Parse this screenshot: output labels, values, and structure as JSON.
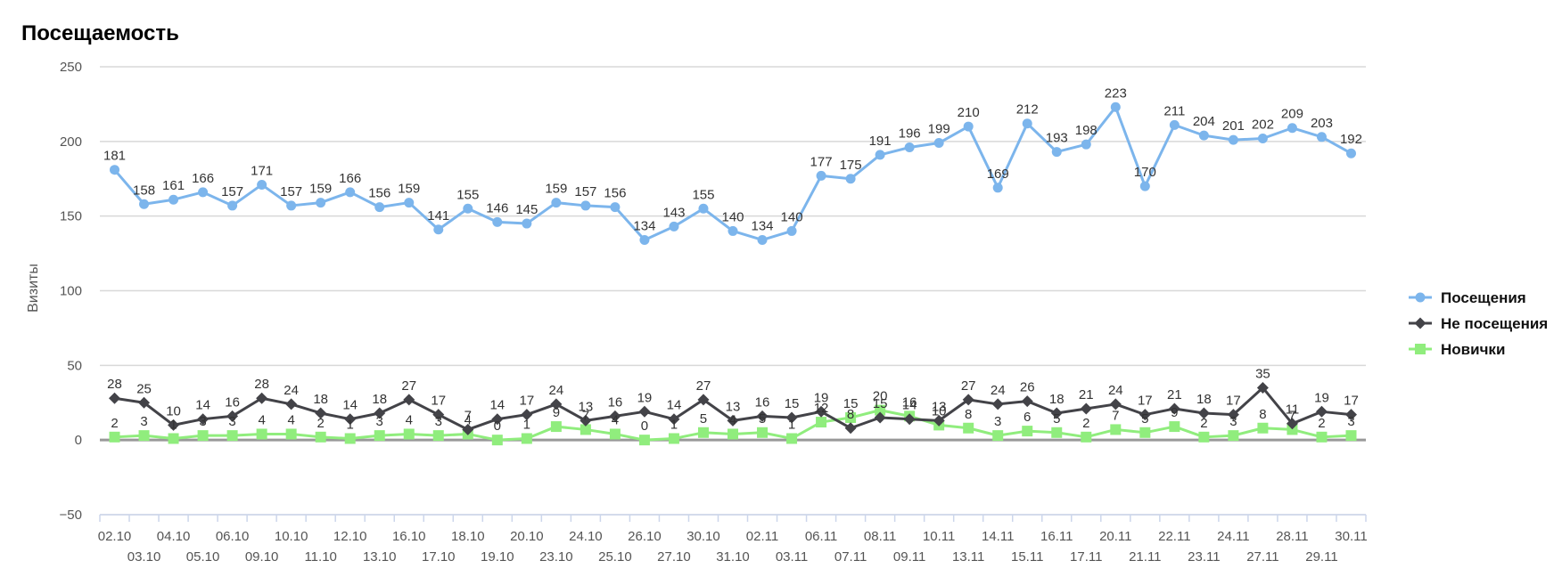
{
  "chart_data": {
    "type": "line",
    "title": "Посещаемость",
    "ylabel": "Визиты",
    "xlabel": "",
    "ylim": [
      -50,
      250
    ],
    "yticks": [
      -50,
      0,
      50,
      100,
      150,
      200,
      250
    ],
    "ytick_labels": [
      "−50",
      "0",
      "50",
      "100",
      "150",
      "200",
      "250"
    ],
    "legend_position": "right",
    "x": [
      "02.10",
      "03.10",
      "04.10",
      "05.10",
      "06.10",
      "09.10",
      "10.10",
      "11.10",
      "12.10",
      "13.10",
      "16.10",
      "17.10",
      "18.10",
      "19.10",
      "20.10",
      "23.10",
      "24.10",
      "25.10",
      "26.10",
      "27.10",
      "30.10",
      "31.10",
      "02.11",
      "03.11",
      "06.11",
      "07.11",
      "08.11",
      "09.11",
      "10.11",
      "13.11",
      "14.11",
      "15.11",
      "16.11",
      "17.11",
      "20.11",
      "21.11",
      "22.11",
      "23.11",
      "24.11",
      "27.11",
      "28.11",
      "29.11",
      "30.11"
    ],
    "series": [
      {
        "name": "Посещения",
        "color": "#7cb5ec",
        "marker": "circle",
        "values": [
          181,
          158,
          161,
          166,
          157,
          171,
          157,
          159,
          166,
          156,
          159,
          141,
          155,
          146,
          145,
          159,
          157,
          156,
          134,
          143,
          155,
          140,
          134,
          140,
          177,
          175,
          191,
          196,
          199,
          210,
          169,
          212,
          193,
          198,
          223,
          170,
          211,
          204,
          201,
          202,
          209,
          203,
          192
        ]
      },
      {
        "name": "Не посещения",
        "color": "#434348",
        "marker": "diamond",
        "values": [
          28,
          25,
          10,
          14,
          16,
          28,
          24,
          18,
          14,
          18,
          27,
          17,
          7,
          14,
          17,
          24,
          13,
          16,
          19,
          14,
          27,
          13,
          16,
          15,
          19,
          8,
          15,
          14,
          13,
          27,
          24,
          26,
          18,
          21,
          24,
          17,
          21,
          18,
          17,
          35,
          11,
          19,
          17
        ]
      },
      {
        "name": "Новички",
        "color": "#90ed7d",
        "marker": "square",
        "values": [
          2,
          3,
          1,
          3,
          3,
          4,
          4,
          2,
          1,
          3,
          4,
          3,
          4,
          0,
          1,
          9,
          7,
          4,
          0,
          1,
          5,
          4,
          5,
          1,
          12,
          15,
          20,
          16,
          10,
          8,
          3,
          6,
          5,
          2,
          7,
          5,
          9,
          2,
          3,
          8,
          7,
          2,
          3
        ]
      }
    ]
  }
}
